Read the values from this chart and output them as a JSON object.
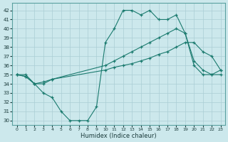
{
  "bg_color": "#cce8ec",
  "grid_color": "#aacdd4",
  "line_color": "#1a7a6e",
  "xlabel": "Humidex (Indice chaleur)",
  "ylim": [
    29.5,
    42.8
  ],
  "xlim": [
    -0.5,
    23.5
  ],
  "yticks": [
    30,
    31,
    32,
    33,
    34,
    35,
    36,
    37,
    38,
    39,
    40,
    41,
    42
  ],
  "xticks": [
    0,
    1,
    2,
    3,
    4,
    5,
    6,
    7,
    8,
    9,
    10,
    11,
    12,
    13,
    14,
    15,
    16,
    17,
    18,
    19,
    20,
    21,
    22,
    23
  ],
  "series1_x": [
    0,
    1,
    2,
    3,
    4,
    5,
    6,
    7,
    8,
    9,
    10,
    11,
    12,
    13,
    14,
    15,
    16,
    17,
    18,
    19,
    20,
    21,
    22,
    23
  ],
  "series1_y": [
    35.0,
    35.0,
    34.0,
    33.0,
    32.5,
    31.0,
    30.0,
    30.0,
    30.0,
    31.5,
    38.5,
    40.0,
    42.0,
    42.0,
    41.5,
    42.0,
    41.0,
    41.0,
    41.5,
    39.5,
    36.0,
    35.0,
    35.0,
    35.0
  ],
  "series2_x": [
    0,
    1,
    2,
    3,
    4,
    10,
    11,
    12,
    13,
    14,
    15,
    16,
    17,
    18,
    19,
    20,
    21,
    22,
    23
  ],
  "series2_y": [
    35.0,
    34.8,
    34.0,
    34.0,
    34.5,
    36.0,
    36.5,
    37.0,
    37.5,
    38.0,
    38.5,
    39.0,
    39.5,
    40.0,
    39.5,
    36.5,
    35.5,
    35.0,
    35.5
  ],
  "series3_x": [
    0,
    1,
    2,
    3,
    4,
    10,
    11,
    12,
    13,
    14,
    15,
    16,
    17,
    18,
    19,
    20,
    21,
    22,
    23
  ],
  "series3_y": [
    35.0,
    34.8,
    34.0,
    34.2,
    34.5,
    35.5,
    35.8,
    36.0,
    36.2,
    36.5,
    36.8,
    37.2,
    37.5,
    38.0,
    38.5,
    38.5,
    37.5,
    37.0,
    35.5
  ]
}
